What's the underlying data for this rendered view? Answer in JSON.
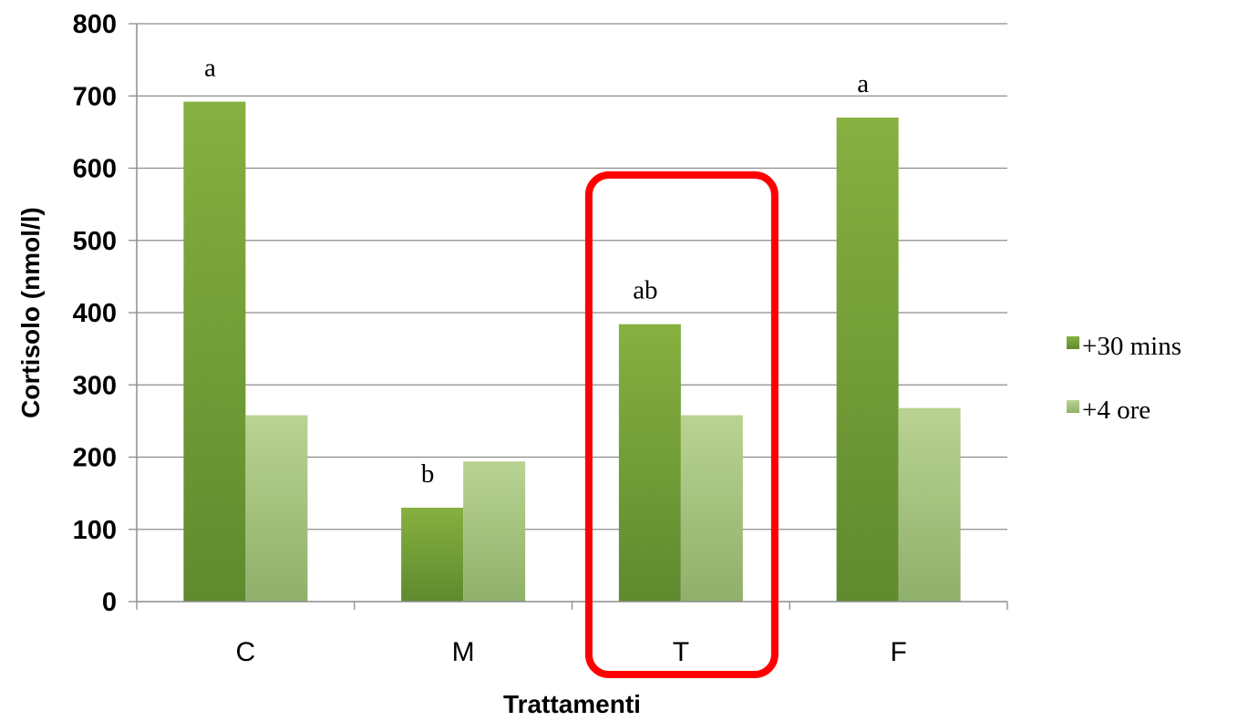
{
  "chart_data": {
    "type": "bar",
    "title": "",
    "xlabel": "Trattamenti",
    "ylabel": "Cortisolo (nmol/l)",
    "ylim": [
      0,
      800
    ],
    "yticks": [
      0,
      100,
      200,
      300,
      400,
      500,
      600,
      700,
      800
    ],
    "grid": true,
    "legend_position": "right",
    "categories": [
      "C",
      "M",
      "T",
      "F"
    ],
    "series": [
      {
        "name": "+30 mins",
        "values": [
          692,
          130,
          384,
          670
        ],
        "color": "#77a03a"
      },
      {
        "name": "+4 ore",
        "values": [
          258,
          194,
          258,
          268
        ],
        "color": "#a7c47c"
      }
    ],
    "annotations": [
      {
        "category": "C",
        "series": 0,
        "text": "a"
      },
      {
        "category": "M",
        "series": 0,
        "text": "b"
      },
      {
        "category": "T",
        "series": 0,
        "text": "ab"
      },
      {
        "category": "F",
        "series": 0,
        "text": "a"
      }
    ],
    "highlight": {
      "category": "T",
      "color": "#ff0000"
    }
  }
}
